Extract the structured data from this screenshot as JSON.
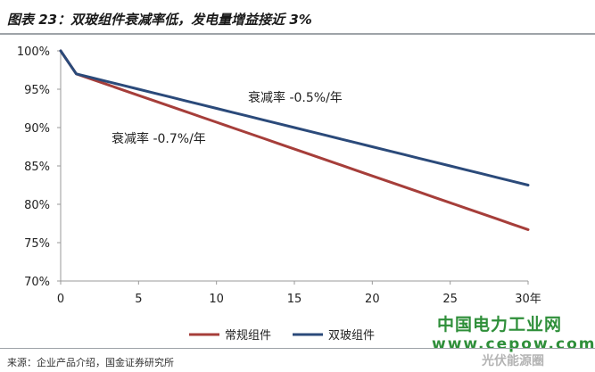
{
  "figure": {
    "title": "图表 23：双玻组件衰减率低，发电量增益接近 3%",
    "source": "来源：企业产品介绍，国金证券研究所"
  },
  "watermark": {
    "name": "中国电力工业网",
    "url": "www.cepow.com",
    "corner": "光伏能源圈"
  },
  "colors": {
    "regular": "#a63e3a",
    "dual_glass": "#2b4a7a",
    "axis": "#999999",
    "text": "#222222"
  },
  "chart_data": {
    "type": "line",
    "x": [
      0,
      1,
      2,
      3,
      4,
      5,
      6,
      7,
      8,
      9,
      10,
      11,
      12,
      13,
      14,
      15,
      16,
      17,
      18,
      19,
      20,
      21,
      22,
      23,
      24,
      25,
      26,
      27,
      28,
      29,
      30
    ],
    "xticks": [
      0,
      5,
      10,
      15,
      20,
      25,
      30
    ],
    "xtick_labels": [
      "0",
      "5",
      "10",
      "15",
      "20",
      "25",
      "30年"
    ],
    "xlim": [
      0,
      30
    ],
    "ylim": [
      0.7,
      1.0
    ],
    "yticks": [
      0.7,
      0.75,
      0.8,
      0.85,
      0.9,
      0.95,
      1.0
    ],
    "ytick_labels": [
      "70%",
      "75%",
      "80%",
      "85%",
      "90%",
      "95%",
      "100%"
    ],
    "grid": false,
    "legend_position": "bottom",
    "series": [
      {
        "name": "常规组件",
        "color_key": "regular",
        "values": [
          1.0,
          0.97,
          0.963,
          0.956,
          0.949,
          0.942,
          0.935,
          0.928,
          0.921,
          0.914,
          0.907,
          0.9,
          0.893,
          0.886,
          0.879,
          0.872,
          0.865,
          0.858,
          0.851,
          0.844,
          0.837,
          0.83,
          0.823,
          0.816,
          0.809,
          0.802,
          0.795,
          0.788,
          0.781,
          0.774,
          0.767
        ]
      },
      {
        "name": "双玻组件",
        "color_key": "dual_glass",
        "values": [
          1.0,
          0.97,
          0.965,
          0.96,
          0.955,
          0.95,
          0.945,
          0.94,
          0.935,
          0.93,
          0.925,
          0.92,
          0.915,
          0.91,
          0.905,
          0.9,
          0.895,
          0.89,
          0.885,
          0.88,
          0.875,
          0.87,
          0.865,
          0.86,
          0.855,
          0.85,
          0.845,
          0.84,
          0.835,
          0.83,
          0.825
        ]
      }
    ],
    "annotations": [
      {
        "text": "衰减率 -0.5%/年",
        "series": "双玻组件"
      },
      {
        "text": "衰减率 -0.7%/年",
        "series": "常规组件"
      }
    ]
  }
}
